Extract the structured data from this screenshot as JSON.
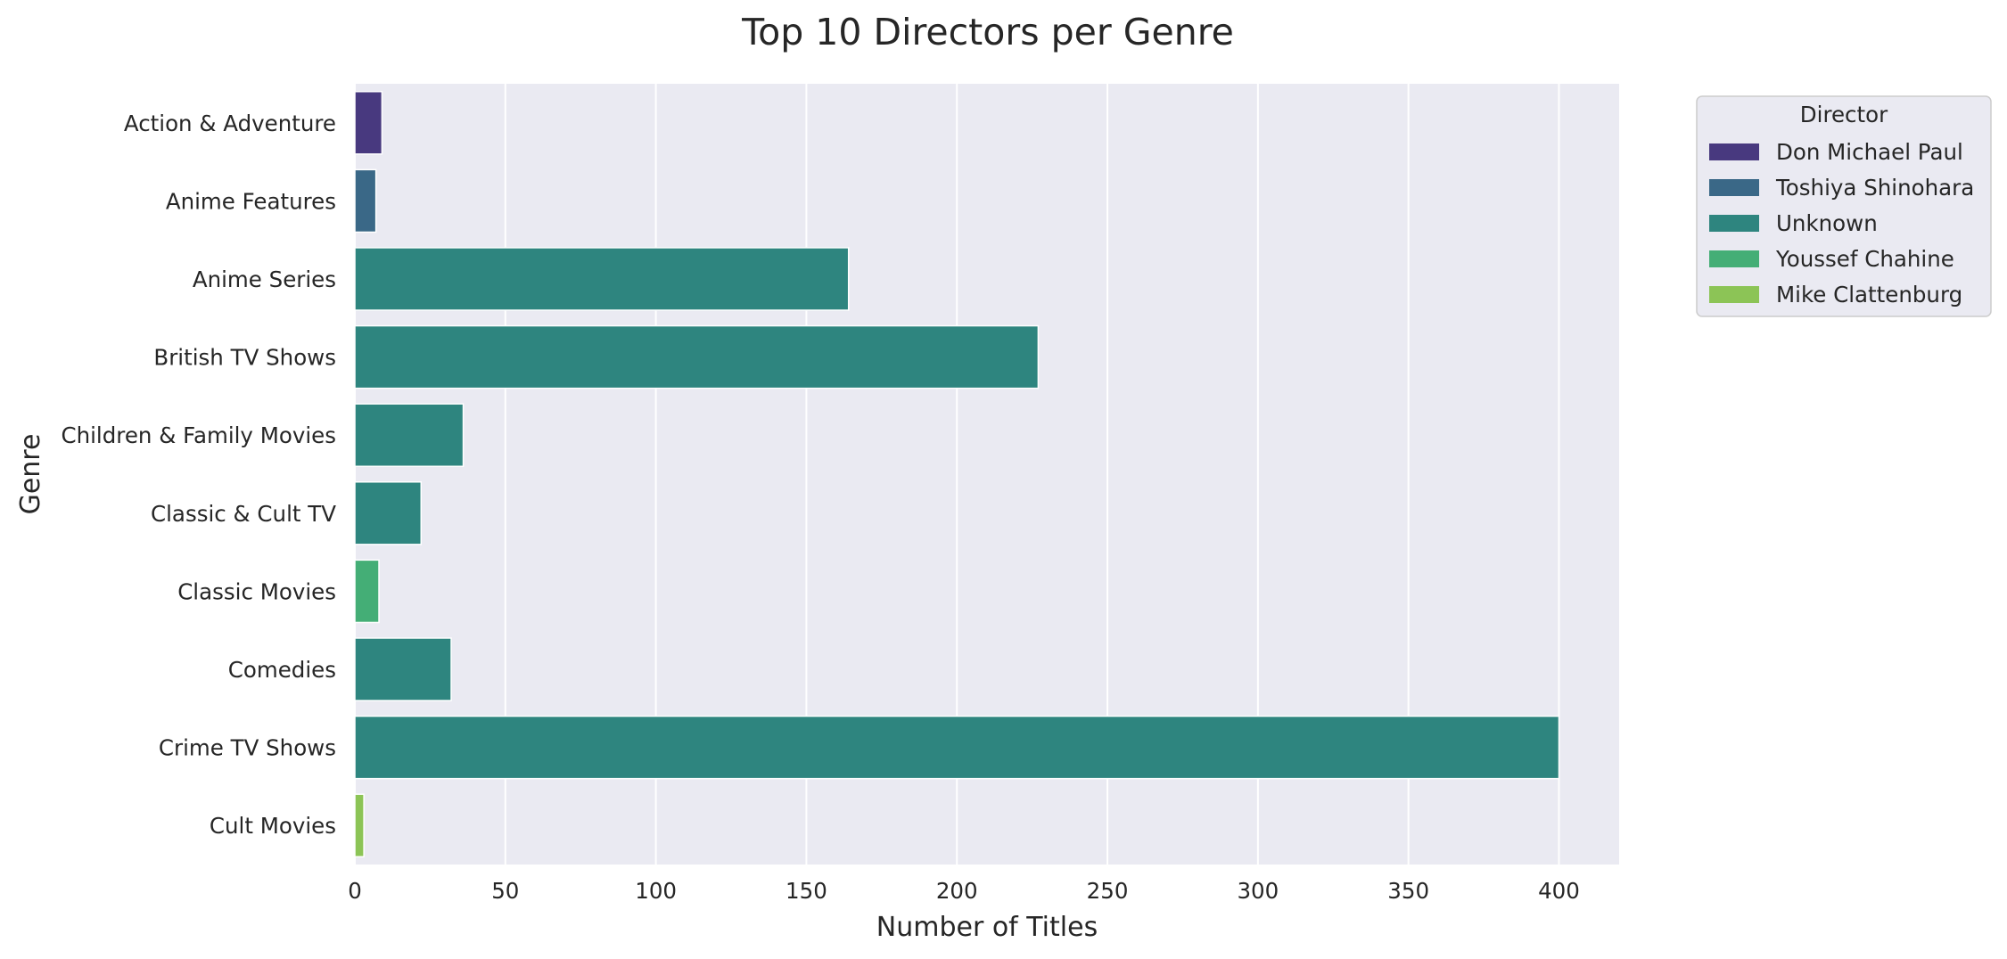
{
  "chart_data": {
    "type": "bar",
    "orientation": "horizontal",
    "title": "Top 10 Directors per Genre",
    "xlabel": "Number of Titles",
    "ylabel": "Genre",
    "xlim": [
      0,
      420
    ],
    "xticks": [
      0,
      50,
      100,
      150,
      200,
      250,
      300,
      350,
      400
    ],
    "grid": true,
    "legend": {
      "title": "Director",
      "placement": "outside-top-right",
      "entries": [
        {
          "name": "Don Michael Paul",
          "color": "#48397f"
        },
        {
          "name": "Toshiya Shinohara",
          "color": "#3a6887"
        },
        {
          "name": "Unknown",
          "color": "#2e857f"
        },
        {
          "name": "Youssef Chahine",
          "color": "#44ae76"
        },
        {
          "name": "Mike Clattenburg",
          "color": "#8cc456"
        }
      ]
    },
    "categories": [
      "Action & Adventure",
      "Anime Features",
      "Anime Series",
      "British TV Shows",
      "Children & Family Movies",
      "Classic & Cult TV",
      "Classic Movies",
      "Comedies",
      "Crime TV Shows",
      "Cult Movies"
    ],
    "bars": [
      {
        "category": "Action & Adventure",
        "director": "Don Michael Paul",
        "value": 9
      },
      {
        "category": "Anime Features",
        "director": "Toshiya Shinohara",
        "value": 7
      },
      {
        "category": "Anime Series",
        "director": "Unknown",
        "value": 164
      },
      {
        "category": "British TV Shows",
        "director": "Unknown",
        "value": 227
      },
      {
        "category": "Children & Family Movies",
        "director": "Unknown",
        "value": 36
      },
      {
        "category": "Classic & Cult TV",
        "director": "Unknown",
        "value": 22
      },
      {
        "category": "Classic Movies",
        "director": "Youssef Chahine",
        "value": 8
      },
      {
        "category": "Comedies",
        "director": "Unknown",
        "value": 32
      },
      {
        "category": "Crime TV Shows",
        "director": "Unknown",
        "value": 400
      },
      {
        "category": "Cult Movies",
        "director": "Mike Clattenburg",
        "value": 3
      }
    ],
    "colors": {
      "plot_background": "#eaeaf2",
      "grid": "#ffffff"
    }
  }
}
